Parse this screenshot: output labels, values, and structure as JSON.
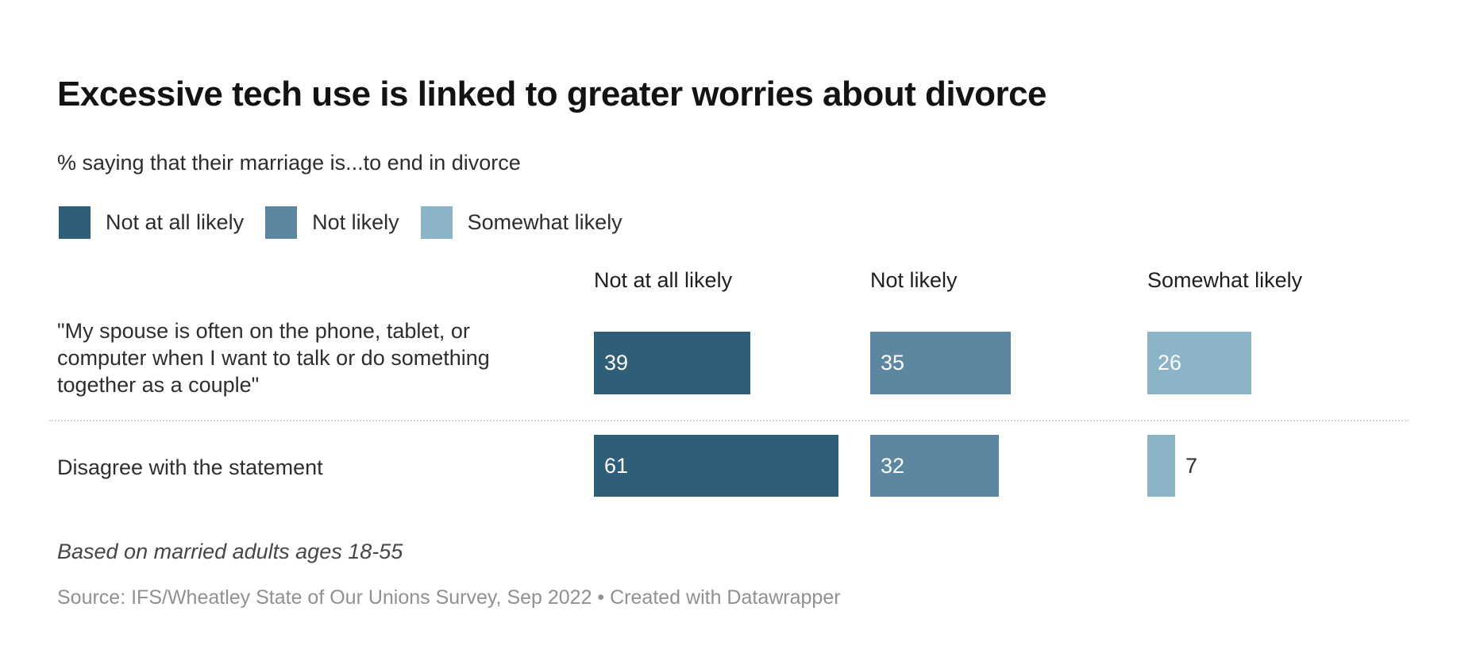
{
  "chart_data": {
    "type": "bar",
    "title": "Excessive tech use is linked to greater worries about divorce",
    "subtitle": "% saying that their marriage is...to end in divorce",
    "legend": [
      "Not at all likely",
      "Not likely",
      "Somewhat likely"
    ],
    "categories": [
      "Not at all likely",
      "Not likely",
      "Somewhat likely"
    ],
    "rows": [
      {
        "label": "\"My spouse is often on the phone, tablet, or computer when I want to talk or do something together as a couple\"",
        "values": [
          39,
          35,
          26
        ]
      },
      {
        "label": "Disagree with the statement",
        "values": [
          61,
          32,
          7
        ]
      }
    ],
    "value_unit": "%",
    "xlim": [
      0,
      69
    ],
    "grid": "off",
    "legend_position": "top-left",
    "colors": [
      "#2f5e78",
      "#5d87a1",
      "#8bb4c9"
    ],
    "footnote": "Based on married adults ages 18-55",
    "source": "Source: IFS/Wheatley State of Our Unions Survey, Sep 2022 • Created with Datawrapper"
  }
}
